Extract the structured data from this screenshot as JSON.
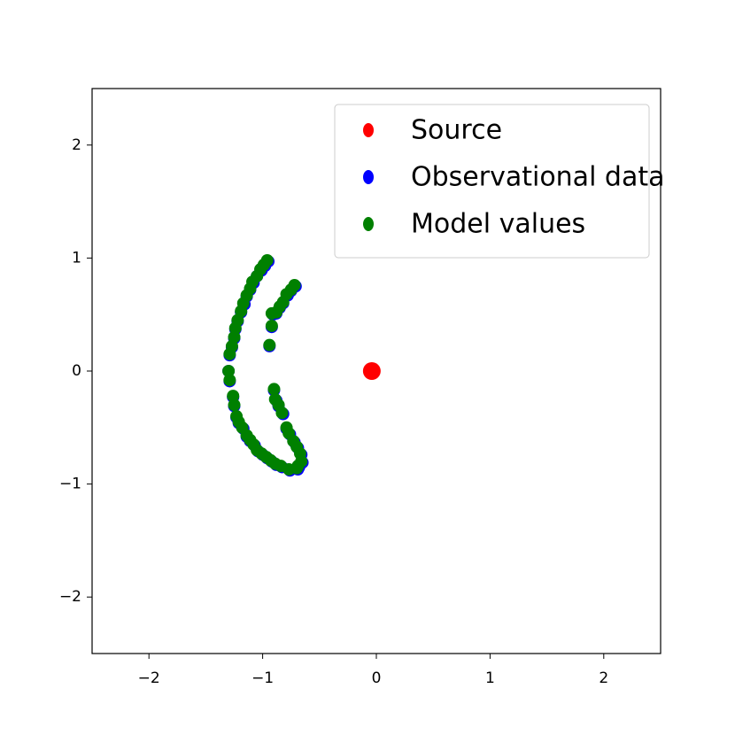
{
  "chart_data": {
    "type": "scatter",
    "xlim": [
      -2.5,
      2.5
    ],
    "ylim": [
      -2.5,
      2.5
    ],
    "xticks": [
      {
        "value": -2,
        "label": "−2"
      },
      {
        "value": -1,
        "label": "−1"
      },
      0,
      1,
      2
    ],
    "yticks": [
      {
        "value": -2,
        "label": "−2"
      },
      {
        "value": -1,
        "label": "−1"
      },
      0,
      1,
      2
    ],
    "legend": "upper right",
    "series": [
      {
        "name": "Source",
        "color": "#ff0000",
        "marker_size": 10,
        "x": [
          -0.04
        ],
        "y": [
          0.0
        ]
      },
      {
        "name": "Observational data",
        "color": "#0000ff",
        "marker_size": 7,
        "x": [
          -0.95,
          -0.98,
          -1.01,
          -1.05,
          -1.08,
          -1.11,
          -1.14,
          -1.16,
          -1.19,
          -1.22,
          -1.24,
          -1.25,
          -1.27,
          -1.29,
          -1.3,
          -1.29,
          -1.26,
          -1.25,
          -1.23,
          -1.21,
          -1.17,
          -1.14,
          -1.11,
          -1.07,
          -1.04,
          -1.0,
          -0.96,
          -0.92,
          -0.88,
          -0.83,
          -0.76,
          -0.69,
          -0.71,
          -0.75,
          -0.78,
          -0.82,
          -0.85,
          -0.88,
          -0.91,
          -0.92,
          -0.94,
          -0.9,
          -0.88,
          -0.86,
          -0.82,
          -0.79,
          -0.76,
          -0.72,
          -0.69,
          -0.66,
          -0.65,
          -0.68
        ],
        "y": [
          0.97,
          0.93,
          0.89,
          0.84,
          0.78,
          0.72,
          0.66,
          0.59,
          0.52,
          0.44,
          0.37,
          0.29,
          0.21,
          0.14,
          0.0,
          -0.09,
          -0.23,
          -0.31,
          -0.41,
          -0.46,
          -0.51,
          -0.58,
          -0.62,
          -0.66,
          -0.71,
          -0.74,
          -0.77,
          -0.8,
          -0.83,
          -0.85,
          -0.88,
          -0.87,
          0.75,
          0.71,
          0.67,
          0.6,
          0.56,
          0.51,
          0.5,
          0.39,
          0.22,
          -0.17,
          -0.26,
          -0.31,
          -0.38,
          -0.51,
          -0.56,
          -0.63,
          -0.68,
          -0.74,
          -0.81,
          -0.85
        ]
      },
      {
        "name": "Model values",
        "color": "#008000",
        "marker_size": 7,
        "x": [
          -0.96,
          -0.99,
          -1.02,
          -1.05,
          -1.09,
          -1.11,
          -1.14,
          -1.17,
          -1.19,
          -1.22,
          -1.24,
          -1.25,
          -1.27,
          -1.29,
          -1.3,
          -1.29,
          -1.26,
          -1.25,
          -1.23,
          -1.21,
          -1.18,
          -1.14,
          -1.11,
          -1.08,
          -1.05,
          -1.01,
          -0.97,
          -0.93,
          -0.89,
          -0.84,
          -0.77,
          -0.7,
          -0.72,
          -0.75,
          -0.79,
          -0.82,
          -0.85,
          -0.88,
          -0.92,
          -0.92,
          -0.94,
          -0.9,
          -0.89,
          -0.86,
          -0.83,
          -0.79,
          -0.77,
          -0.73,
          -0.7,
          -0.67,
          -0.66,
          -0.69
        ],
        "y": [
          0.98,
          0.94,
          0.9,
          0.84,
          0.79,
          0.73,
          0.67,
          0.6,
          0.53,
          0.45,
          0.38,
          0.3,
          0.22,
          0.15,
          0.0,
          -0.08,
          -0.22,
          -0.3,
          -0.4,
          -0.45,
          -0.5,
          -0.57,
          -0.61,
          -0.65,
          -0.7,
          -0.73,
          -0.76,
          -0.79,
          -0.82,
          -0.84,
          -0.87,
          -0.86,
          0.76,
          0.72,
          0.68,
          0.61,
          0.57,
          0.52,
          0.51,
          0.4,
          0.23,
          -0.16,
          -0.25,
          -0.3,
          -0.37,
          -0.5,
          -0.55,
          -0.62,
          -0.67,
          -0.73,
          -0.8,
          -0.84
        ]
      }
    ]
  }
}
